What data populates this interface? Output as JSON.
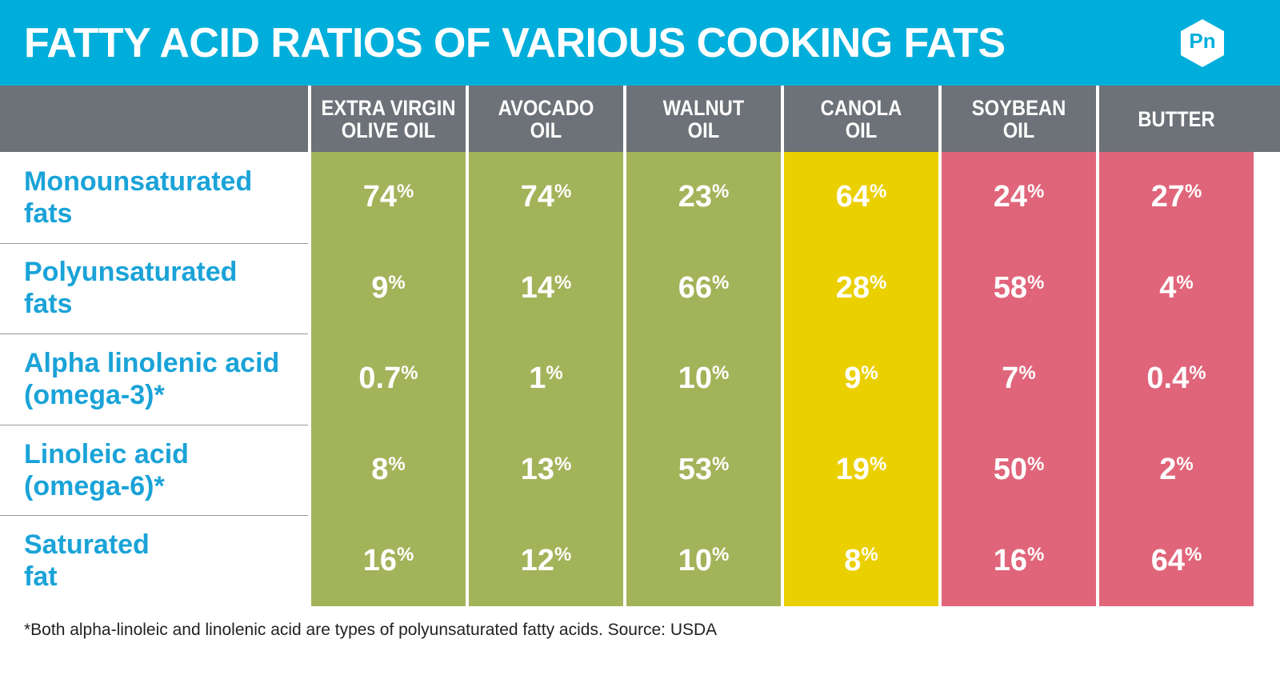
{
  "header": {
    "title": "FATTY ACID RATIOS OF VARIOUS COOKING FATS",
    "logo": "Pn"
  },
  "table": {
    "columns": [
      {
        "label": "EXTRA VIRGIN\nOLIVE OIL",
        "color": "#a3b35a"
      },
      {
        "label": "AVOCADO\nOIL",
        "color": "#a3b35a"
      },
      {
        "label": "WALNUT\nOIL",
        "color": "#a3b35a"
      },
      {
        "label": "CANOLA\nOIL",
        "color": "#ebd000"
      },
      {
        "label": "SOYBEAN\nOIL",
        "color": "#e0657a"
      },
      {
        "label": "BUTTER",
        "color": "#e0657a"
      }
    ],
    "rows": [
      {
        "label": "Monounsaturated\nfats",
        "cells": [
          "74%",
          "74%",
          "23%",
          "64%",
          "24%",
          "27%"
        ]
      },
      {
        "label": "Polyunsaturated\nfats",
        "cells": [
          "9%",
          "14%",
          "66%",
          "28%",
          "58%",
          "4%"
        ]
      },
      {
        "label": "Alpha linolenic acid\n(omega-3)*",
        "cells": [
          "0.7%",
          "1%",
          "10%",
          "9%",
          "7%",
          "0.4%"
        ]
      },
      {
        "label": "Linoleic acid\n(omega-6)*",
        "cells": [
          "8%",
          "13%",
          "53%",
          "19%",
          "50%",
          "2%"
        ]
      },
      {
        "label": "Saturated\nfat",
        "cells": [
          "16%",
          "12%",
          "10%",
          "8%",
          "16%",
          "64%"
        ]
      }
    ]
  },
  "footnote": "*Both alpha-linoleic and linolenic acid are types of polyunsaturated fatty acids. Source: USDA"
}
